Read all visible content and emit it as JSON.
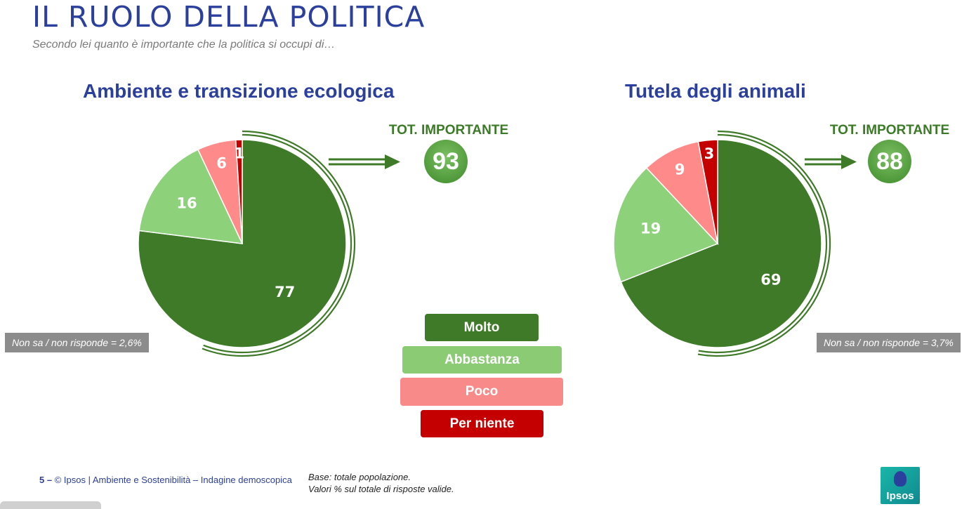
{
  "page": {
    "title": "IL RUOLO DELLA POLITICA",
    "subtitle": "Secondo lei quanto è importante che la politica si occupi di…"
  },
  "colors": {
    "molto": "#3e7a28",
    "abbastanza": "#8dd17a",
    "poco": "#ff8a8a",
    "per_niente": "#c40000",
    "title_blue": "#2b3f9c",
    "tot_green": "#3b7a27"
  },
  "chart_data": [
    {
      "type": "pie",
      "title": "Ambiente e transizione ecologica",
      "categories": [
        "Molto",
        "Abbastanza",
        "Poco",
        "Per niente"
      ],
      "values": [
        77,
        16,
        6,
        1
      ],
      "tot_label": "TOT. IMPORTANTE",
      "tot_value": "93",
      "note": "Non sa / non risponde = 2,6%"
    },
    {
      "type": "pie",
      "title": "Tutela degli animali",
      "categories": [
        "Molto",
        "Abbastanza",
        "Poco",
        "Per niente"
      ],
      "values": [
        69,
        19,
        9,
        3
      ],
      "tot_label": "TOT. IMPORTANTE",
      "tot_value": "88",
      "note": "Non sa / non risponde = 3,7%"
    }
  ],
  "legend": [
    "Molto",
    "Abbastanza",
    "Poco",
    "Per niente"
  ],
  "footer": {
    "page_number": "5 –",
    "copyright": "© Ipsos | Ambiente e Sostenibilità – Indagine demoscopica",
    "base_line1": "Base: totale popolazione.",
    "base_line2": "Valori % sul totale di risposte valide."
  },
  "logo": {
    "text": "Ipsos"
  }
}
